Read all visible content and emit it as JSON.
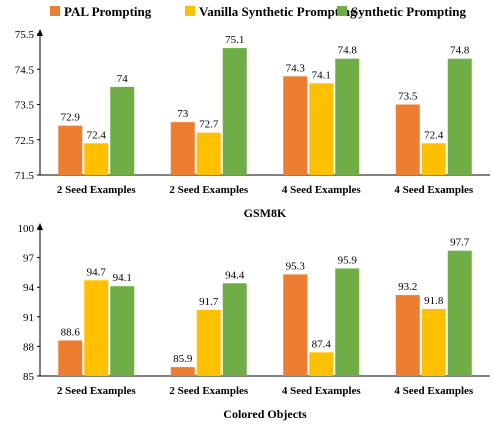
{
  "legend": [
    {
      "name": "PAL Prompting",
      "color": "#ED7D31"
    },
    {
      "name": "Vanilla Synthetic Prompting",
      "color": "#FFC000"
    },
    {
      "name": "Synthetic Prompting",
      "color": "#70AD47"
    }
  ],
  "chart_data": [
    {
      "type": "bar",
      "title": "GSM8K",
      "categories": [
        "2 Seed Examples",
        "2 Seed Examples",
        "4 Seed Examples",
        "4 Seed Examples"
      ],
      "series": [
        {
          "name": "PAL Prompting",
          "values": [
            72.9,
            73,
            74.3,
            73.5
          ],
          "labels": [
            "72.9",
            "73",
            "74.3",
            "73.5"
          ]
        },
        {
          "name": "Vanilla Synthetic Prompting",
          "values": [
            72.4,
            72.7,
            74.1,
            72.4
          ],
          "labels": [
            "72.4",
            "72.7",
            "74.1",
            "72.4"
          ]
        },
        {
          "name": "Synthetic Prompting",
          "values": [
            74,
            75.1,
            74.8,
            74.8
          ],
          "labels": [
            "74",
            "75.1",
            "74.8",
            "74.8"
          ]
        }
      ],
      "ylim": [
        71.5,
        75.5
      ],
      "yticks": [
        "71.5",
        "72.5",
        "73.5",
        "74.5",
        "75.5"
      ],
      "grid": false,
      "legend_position": "top"
    },
    {
      "type": "bar",
      "title": "Colored Objects",
      "categories": [
        "2 Seed Examples",
        "2 Seed Examples",
        "4 Seed Examples",
        "4 Seed Examples"
      ],
      "series": [
        {
          "name": "PAL Prompting",
          "values": [
            88.6,
            85.9,
            95.3,
            93.2
          ],
          "labels": [
            "88.6",
            "85.9",
            "95.3",
            "93.2"
          ]
        },
        {
          "name": "Vanilla Synthetic Prompting",
          "values": [
            94.7,
            91.7,
            87.4,
            91.8
          ],
          "labels": [
            "94.7",
            "91.7",
            "87.4",
            "91.8"
          ]
        },
        {
          "name": "Synthetic Prompting",
          "values": [
            94.1,
            94.4,
            95.9,
            97.7
          ],
          "labels": [
            "94.1",
            "94.4",
            "95.9",
            "97.7"
          ]
        }
      ],
      "ylim": [
        85,
        100
      ],
      "yticks": [
        "85",
        "88",
        "91",
        "94",
        "97",
        "100"
      ],
      "grid": false,
      "legend_position": "top"
    }
  ]
}
